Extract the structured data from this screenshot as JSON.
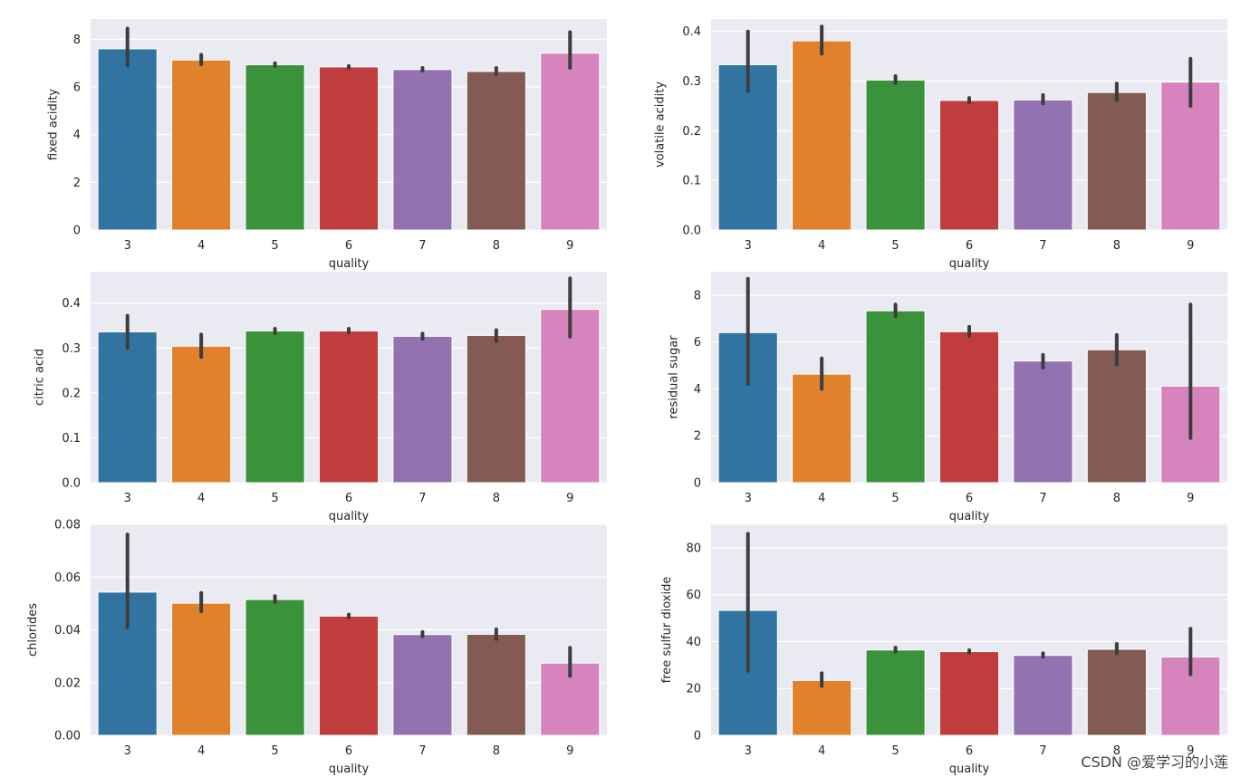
{
  "watermark": "CSDN @爱学习的小莲",
  "palette": [
    "#3274a1",
    "#e1812c",
    "#3a923a",
    "#c03d3e",
    "#9372b2",
    "#845b53",
    "#d684bd"
  ],
  "chart_data": [
    {
      "type": "bar",
      "xlabel": "quality",
      "ylabel": "fixed acidity",
      "categories": [
        "3",
        "4",
        "5",
        "6",
        "7",
        "8",
        "9"
      ],
      "values": [
        7.6,
        7.13,
        6.93,
        6.84,
        6.73,
        6.65,
        7.42
      ],
      "ci_low": [
        6.9,
        6.95,
        6.88,
        6.8,
        6.68,
        6.53,
        6.8
      ],
      "ci_high": [
        8.45,
        7.35,
        7.0,
        6.88,
        6.8,
        6.8,
        8.3
      ],
      "ylim": [
        0,
        8.85
      ],
      "yticks": [
        0,
        2,
        4,
        6,
        8
      ],
      "ytick_labels": [
        "0",
        "2",
        "4",
        "6",
        "8"
      ]
    },
    {
      "type": "bar",
      "xlabel": "quality",
      "ylabel": "volatile acidity",
      "categories": [
        "3",
        "4",
        "5",
        "6",
        "7",
        "8",
        "9"
      ],
      "values": [
        0.333,
        0.381,
        0.302,
        0.261,
        0.262,
        0.277,
        0.298
      ],
      "ci_low": [
        0.28,
        0.355,
        0.296,
        0.257,
        0.255,
        0.262,
        0.25
      ],
      "ci_high": [
        0.4,
        0.41,
        0.31,
        0.266,
        0.272,
        0.295,
        0.345
      ],
      "ylim": [
        0,
        0.425
      ],
      "yticks": [
        0.0,
        0.1,
        0.2,
        0.3,
        0.4
      ],
      "ytick_labels": [
        "0.0",
        "0.1",
        "0.2",
        "0.3",
        "0.4"
      ]
    },
    {
      "type": "bar",
      "xlabel": "quality",
      "ylabel": "citric acid",
      "categories": [
        "3",
        "4",
        "5",
        "6",
        "7",
        "8",
        "9"
      ],
      "values": [
        0.336,
        0.304,
        0.338,
        0.338,
        0.326,
        0.328,
        0.386
      ],
      "ci_low": [
        0.3,
        0.28,
        0.333,
        0.334,
        0.32,
        0.315,
        0.325
      ],
      "ci_high": [
        0.372,
        0.33,
        0.343,
        0.343,
        0.332,
        0.34,
        0.455
      ],
      "ylim": [
        0,
        0.47
      ],
      "yticks": [
        0.0,
        0.1,
        0.2,
        0.3,
        0.4
      ],
      "ytick_labels": [
        "0.0",
        "0.1",
        "0.2",
        "0.3",
        "0.4"
      ]
    },
    {
      "type": "bar",
      "xlabel": "quality",
      "ylabel": "residual sugar",
      "categories": [
        "3",
        "4",
        "5",
        "6",
        "7",
        "8",
        "9"
      ],
      "values": [
        6.4,
        4.63,
        7.33,
        6.44,
        5.19,
        5.67,
        4.12
      ],
      "ci_low": [
        4.2,
        4.0,
        7.1,
        6.25,
        4.9,
        5.05,
        1.9
      ],
      "ci_high": [
        8.7,
        5.3,
        7.6,
        6.65,
        5.45,
        6.3,
        7.6
      ],
      "ylim": [
        0,
        9.0
      ],
      "yticks": [
        0,
        2,
        4,
        6,
        8
      ],
      "ytick_labels": [
        "0",
        "2",
        "4",
        "6",
        "8"
      ]
    },
    {
      "type": "bar",
      "xlabel": "quality",
      "ylabel": "chlorides",
      "categories": [
        "3",
        "4",
        "5",
        "6",
        "7",
        "8",
        "9"
      ],
      "values": [
        0.0543,
        0.0501,
        0.0515,
        0.0452,
        0.0382,
        0.0383,
        0.0274
      ],
      "ci_low": [
        0.041,
        0.047,
        0.0505,
        0.0447,
        0.0375,
        0.0365,
        0.0225
      ],
      "ci_high": [
        0.0762,
        0.054,
        0.0528,
        0.0458,
        0.0392,
        0.0402,
        0.0332
      ],
      "ylim": [
        0,
        0.08
      ],
      "yticks": [
        0.0,
        0.02,
        0.04,
        0.06,
        0.08
      ],
      "ytick_labels": [
        "0.00",
        "0.02",
        "0.04",
        "0.06",
        "0.08"
      ]
    },
    {
      "type": "bar",
      "xlabel": "quality",
      "ylabel": "free sulfur dioxide",
      "categories": [
        "3",
        "4",
        "5",
        "6",
        "7",
        "8",
        "9"
      ],
      "values": [
        53.3,
        23.4,
        36.4,
        35.7,
        34.1,
        36.7,
        33.4
      ],
      "ci_low": [
        27.5,
        21.0,
        35.6,
        35.2,
        33.5,
        35.0,
        26.0
      ],
      "ci_high": [
        86.0,
        26.5,
        37.4,
        36.3,
        35.0,
        39.0,
        45.5
      ],
      "ylim": [
        0,
        90
      ],
      "yticks": [
        0,
        20,
        40,
        60,
        80
      ],
      "ytick_labels": [
        "0",
        "20",
        "40",
        "60",
        "80"
      ]
    }
  ]
}
